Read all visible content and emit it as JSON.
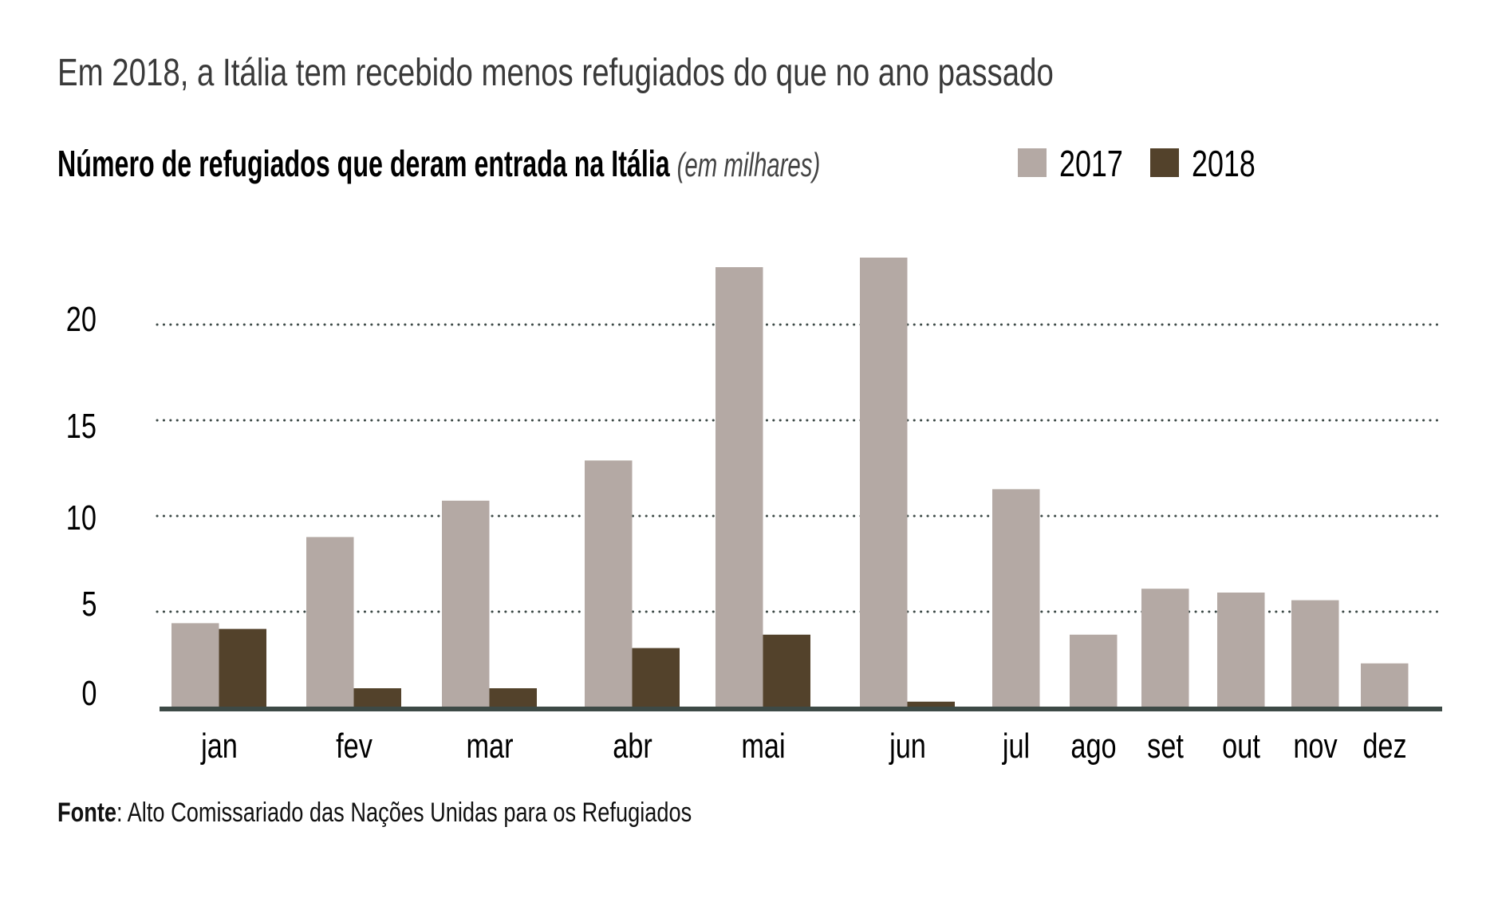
{
  "chart_data": {
    "type": "bar",
    "title": "Em 2018, a Itália tem recebido menos refugiados do que no ano passado",
    "subtitle": "Número de refugiados que deram entrada na Itália",
    "subtitle_unit": "(em milhares)",
    "xlabel": "",
    "ylabel": "",
    "categories": [
      "jan",
      "fev",
      "mar",
      "abr",
      "mai",
      "jun",
      "jul",
      "ago",
      "set",
      "out",
      "nov",
      "dez"
    ],
    "series": [
      {
        "name": "2017",
        "color": "#b4a9a4",
        "values": [
          4.4,
          8.9,
          10.8,
          12.9,
          23.0,
          23.5,
          11.4,
          3.8,
          6.2,
          6.0,
          5.6,
          2.3
        ]
      },
      {
        "name": "2018",
        "color": "#53422b",
        "values": [
          4.1,
          1.0,
          1.0,
          3.1,
          3.8,
          0.3,
          null,
          null,
          null,
          null,
          null,
          null
        ]
      }
    ],
    "yticks": [
      0,
      5,
      10,
      15,
      20
    ],
    "ytick_labels": [
      "0",
      "5",
      "10",
      "15",
      "20"
    ],
    "ylim": [
      0,
      24
    ],
    "grid": true,
    "grid_style": "dotted",
    "legend_position": "top-right",
    "source_label": "Fonte",
    "source_text": ": Alto Comissariado das Nações Unidas para os Refugiados"
  },
  "colors": {
    "title": "#3a3a3a",
    "grid": "#3d4a47",
    "axis": "#3d4a46"
  }
}
